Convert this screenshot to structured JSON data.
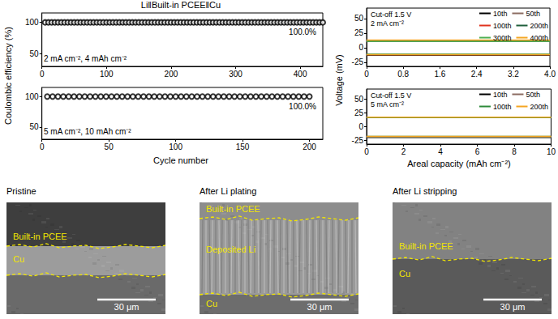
{
  "title": "Li‖Built-in PCEE‖Cu",
  "chart_data": [
    {
      "type": "scatter",
      "ylabel": "Coulombic efficiency (%)",
      "annotations": [
        "2 mA cm⁻², 4 mAh cm⁻²",
        "100.0%"
      ],
      "x": [
        5,
        10,
        15,
        20,
        25,
        30,
        35,
        40,
        45,
        50,
        55,
        60,
        65,
        70,
        75,
        80,
        85,
        90,
        95,
        100,
        105,
        110,
        115,
        120,
        125,
        130,
        135,
        140,
        145,
        150,
        155,
        160,
        165,
        170,
        175,
        180,
        185,
        190,
        195,
        200,
        205,
        210,
        215,
        220,
        225,
        230,
        235,
        240,
        245,
        250,
        255,
        260,
        265,
        270,
        275,
        280,
        285,
        290,
        295,
        300,
        305,
        310,
        315,
        320,
        325,
        330,
        335,
        340,
        345,
        350,
        355,
        360,
        365,
        370,
        375,
        380,
        385,
        390,
        395,
        400,
        405,
        410,
        415,
        420,
        425,
        430,
        435
      ],
      "values": [
        100,
        100,
        100,
        100,
        100,
        100,
        100,
        100,
        100,
        100,
        100,
        100,
        100,
        100,
        100,
        100,
        100,
        100,
        100,
        100,
        100,
        100,
        100,
        100,
        100,
        100,
        100,
        100,
        100,
        100,
        100,
        100,
        100,
        100,
        100,
        100,
        100,
        100,
        100,
        100,
        100,
        100,
        100,
        100,
        100,
        100,
        100,
        100,
        100,
        100,
        100,
        100,
        100,
        100,
        100,
        100,
        100,
        100,
        100,
        100,
        100,
        100,
        100,
        100,
        100,
        100,
        100,
        100,
        100,
        100,
        100,
        100,
        100,
        100,
        100,
        100,
        100,
        100,
        100,
        100,
        100,
        100,
        100,
        100,
        100,
        100,
        100
      ],
      "color": "#000000",
      "marker": "open_circle",
      "xlim": [
        0,
        435
      ],
      "xticks": [
        0,
        100,
        200,
        300,
        400
      ],
      "ylim": [
        30,
        115
      ],
      "yticks": [
        50,
        100
      ],
      "grid": false
    },
    {
      "type": "scatter",
      "xlabel": "Cycle number",
      "annotations": [
        "5 mA cm⁻², 10 mAh cm⁻²",
        "100.0%"
      ],
      "x": [
        4,
        8,
        12,
        16,
        20,
        24,
        28,
        32,
        36,
        40,
        44,
        48,
        52,
        56,
        60,
        64,
        68,
        72,
        76,
        80,
        84,
        88,
        92,
        96,
        100,
        104,
        108,
        112,
        116,
        120,
        124,
        128,
        132,
        136,
        140,
        144,
        148,
        152,
        156,
        160,
        164,
        168,
        172,
        176,
        180,
        184,
        188,
        192,
        196,
        200
      ],
      "values": [
        100,
        100,
        100,
        100,
        100,
        100,
        100,
        100,
        100,
        100,
        100,
        100,
        100,
        100,
        100,
        100,
        100,
        100,
        100,
        100,
        100,
        100,
        100,
        100,
        100,
        100,
        100,
        100,
        100,
        100,
        100,
        100,
        100,
        100,
        100,
        100,
        100,
        100,
        100,
        100,
        100,
        100,
        100,
        100,
        100,
        100,
        100,
        100,
        100,
        100
      ],
      "color": "#000000",
      "marker": "open_circle",
      "xlim": [
        0,
        210
      ],
      "xticks": [
        0,
        50,
        100,
        150,
        200
      ],
      "ylim": [
        30,
        115
      ],
      "yticks": [
        50,
        100
      ],
      "grid": false
    },
    {
      "type": "line",
      "ylabel": "Voltage (mV)",
      "annotations": [
        "Cut-off 1.5 V",
        "2 mA cm⁻²"
      ],
      "x": [
        0,
        1,
        2,
        3,
        4,
        4,
        0,
        1,
        2,
        3,
        4
      ],
      "series": [
        {
          "name": "10th",
          "color": "#000000",
          "values": [
            -13,
            -13,
            -13,
            -13,
            -13,
            null,
            12,
            12,
            12,
            12,
            12
          ]
        },
        {
          "name": "50th",
          "color": "#8c6d62",
          "values": [
            -12,
            -12,
            -12,
            -12,
            -12,
            null,
            12,
            12,
            12,
            12,
            12
          ]
        },
        {
          "name": "100th",
          "color": "#e0321e",
          "values": [
            -12,
            -12,
            -12,
            -12,
            -12,
            null,
            12,
            12,
            12,
            12,
            12
          ]
        },
        {
          "name": "200th",
          "color": "#1f5f3b",
          "values": [
            -11,
            -11,
            -11,
            -11,
            -11,
            null,
            11,
            11,
            11,
            11,
            11
          ]
        },
        {
          "name": "300th",
          "color": "#4caf50",
          "values": [
            -11,
            -11,
            -11,
            -11,
            -11,
            null,
            11,
            11,
            11,
            11,
            11
          ]
        },
        {
          "name": "400th",
          "color": "#f5a623",
          "values": [
            -12,
            -12,
            -12,
            -12,
            -12,
            null,
            13,
            13,
            13,
            13,
            13
          ]
        }
      ],
      "xlim": [
        0,
        4
      ],
      "xticks": [
        0,
        0.8,
        1.6,
        2.4,
        3.2,
        {
          "value": 4,
          "label": "4.0"
        }
      ],
      "ylim": [
        -32,
        68
      ],
      "yticks": [
        -25,
        0,
        25,
        50
      ],
      "legend": "upper right",
      "grid": false
    },
    {
      "type": "line",
      "xlabel": "Areal capacity (mAh cm⁻²)",
      "annotations": [
        "Cut-off 1.5 V",
        "5 mA cm⁻²"
      ],
      "x": [
        0,
        2.5,
        5,
        7.5,
        10,
        10,
        0,
        2.5,
        5,
        7.5,
        10
      ],
      "series": [
        {
          "name": "10th",
          "color": "#000000",
          "values": [
            -20,
            -20,
            -20,
            -20,
            -20,
            null,
            17,
            17,
            17,
            17,
            17
          ]
        },
        {
          "name": "50th",
          "color": "#8c6d62",
          "values": [
            -19,
            -19,
            -19,
            -19,
            -19,
            null,
            16,
            16,
            16,
            16,
            16
          ]
        },
        {
          "name": "100th",
          "color": "#2e8b3a",
          "values": [
            -18,
            -18,
            -18,
            -18,
            -18,
            null,
            16,
            16,
            16,
            16,
            16
          ]
        },
        {
          "name": "200th",
          "color": "#f5a623",
          "values": [
            -18,
            -18,
            -18,
            -18,
            -18,
            null,
            17,
            17,
            17,
            17,
            17
          ]
        }
      ],
      "xlim": [
        0,
        10
      ],
      "xticks": [
        0,
        2,
        4,
        6,
        8,
        10
      ],
      "ylim": [
        -32,
        68
      ],
      "yticks": [
        -25,
        0,
        25,
        50
      ],
      "legend": "upper right",
      "grid": false
    }
  ],
  "images": [
    {
      "title": "Pristine",
      "labels": [
        "Built-in PCEE",
        "Cu"
      ],
      "scale_bar": "30 μm"
    },
    {
      "title": "After Li plating",
      "labels": [
        "Built-in PCEE",
        "Deposited Li",
        "Cu"
      ],
      "scale_bar": "30 μm"
    },
    {
      "title": "After Li stripping",
      "labels": [
        "Built-in PCEE",
        "Cu"
      ],
      "scale_bar": "30 μm"
    }
  ]
}
